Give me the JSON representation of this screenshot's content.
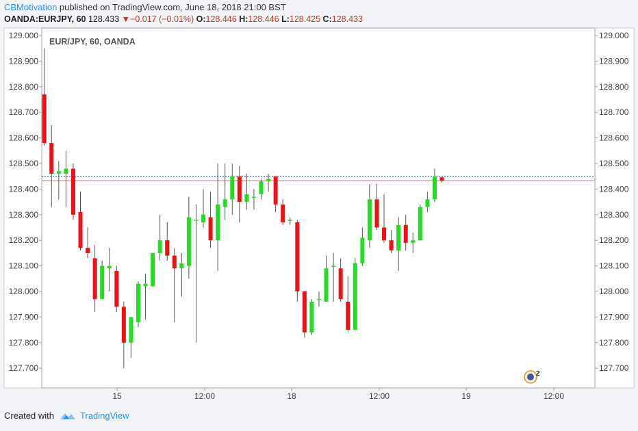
{
  "header": {
    "author": "CBMotivation",
    "published": " published on TradingView.com, June 18, 2018 21:00 BST"
  },
  "quote": {
    "symbol": "OANDA:EURJPY, 60",
    "last": "128.433",
    "change": "−0.017 (−0.01%)",
    "o_label": "O:",
    "o": "128.446",
    "h_label": "H:",
    "h": "128.446",
    "l_label": "L:",
    "l": "128.425",
    "c_label": "C:",
    "c": "128.433"
  },
  "footer": {
    "created_with": "Created with",
    "brand": "TradingView"
  },
  "colors": {
    "up": "#22dd22",
    "down": "#ee1111",
    "wick": "#555555",
    "hline_blue": "#1f3cc7",
    "hline_red": "#e57373"
  },
  "chart_data": {
    "type": "candlestick",
    "title": "EUR/JPY, 60, OANDA",
    "ylim": [
      127.62,
      129.02
    ],
    "y_ticks": [
      "129.000",
      "128.900",
      "128.800",
      "128.700",
      "128.600",
      "128.500",
      "128.400",
      "128.300",
      "128.200",
      "128.100",
      "128.000",
      "127.900",
      "127.800",
      "127.700"
    ],
    "x_ticks": [
      "15",
      "12:00",
      "18",
      "12:00",
      "19",
      "12:00"
    ],
    "hlines": [
      128.448,
      128.433
    ],
    "badge": "2",
    "candles": [
      {
        "o": 128.77,
        "h": 128.95,
        "l": 128.57,
        "c": 128.58
      },
      {
        "o": 128.58,
        "h": 128.65,
        "l": 128.33,
        "c": 128.46
      },
      {
        "o": 128.46,
        "h": 128.51,
        "l": 128.36,
        "c": 128.47
      },
      {
        "o": 128.46,
        "h": 128.55,
        "l": 128.33,
        "c": 128.48
      },
      {
        "o": 128.48,
        "h": 128.5,
        "l": 128.28,
        "c": 128.3
      },
      {
        "o": 128.31,
        "h": 128.39,
        "l": 128.16,
        "c": 128.17
      },
      {
        "o": 128.17,
        "h": 128.25,
        "l": 128.13,
        "c": 128.15
      },
      {
        "o": 128.13,
        "h": 128.18,
        "l": 127.92,
        "c": 127.97
      },
      {
        "o": 127.97,
        "h": 128.12,
        "l": 127.97,
        "c": 128.1
      },
      {
        "o": 128.09,
        "h": 128.17,
        "l": 128.0,
        "c": 128.1
      },
      {
        "o": 128.08,
        "h": 128.1,
        "l": 127.92,
        "c": 127.94
      },
      {
        "o": 127.94,
        "h": 127.96,
        "l": 127.7,
        "c": 127.8
      },
      {
        "o": 127.8,
        "h": 127.9,
        "l": 127.74,
        "c": 127.9
      },
      {
        "o": 127.88,
        "h": 128.04,
        "l": 127.86,
        "c": 128.03
      },
      {
        "o": 128.02,
        "h": 128.07,
        "l": 127.89,
        "c": 128.03
      },
      {
        "o": 128.02,
        "h": 128.15,
        "l": 128.02,
        "c": 128.15
      },
      {
        "o": 128.15,
        "h": 128.3,
        "l": 128.12,
        "c": 128.2
      },
      {
        "o": 128.2,
        "h": 128.27,
        "l": 128.12,
        "c": 128.14
      },
      {
        "o": 128.14,
        "h": 128.17,
        "l": 127.88,
        "c": 128.09
      },
      {
        "o": 128.09,
        "h": 128.15,
        "l": 127.98,
        "c": 128.11
      },
      {
        "o": 128.1,
        "h": 128.37,
        "l": 128.05,
        "c": 128.29
      },
      {
        "o": 128.28,
        "h": 128.34,
        "l": 127.8,
        "c": 128.28
      },
      {
        "o": 128.27,
        "h": 128.4,
        "l": 128.25,
        "c": 128.3
      },
      {
        "o": 128.29,
        "h": 128.39,
        "l": 128.17,
        "c": 128.2
      },
      {
        "o": 128.2,
        "h": 128.5,
        "l": 128.08,
        "c": 128.34
      },
      {
        "o": 128.33,
        "h": 128.5,
        "l": 128.28,
        "c": 128.36
      },
      {
        "o": 128.36,
        "h": 128.5,
        "l": 128.3,
        "c": 128.45
      },
      {
        "o": 128.45,
        "h": 128.49,
        "l": 128.27,
        "c": 128.35
      },
      {
        "o": 128.35,
        "h": 128.46,
        "l": 128.32,
        "c": 128.38
      },
      {
        "o": 128.37,
        "h": 128.4,
        "l": 128.32,
        "c": 128.37
      },
      {
        "o": 128.38,
        "h": 128.44,
        "l": 128.36,
        "c": 128.43
      },
      {
        "o": 128.43,
        "h": 128.46,
        "l": 128.39,
        "c": 128.44
      },
      {
        "o": 128.45,
        "h": 128.45,
        "l": 128.31,
        "c": 128.34
      },
      {
        "o": 128.34,
        "h": 128.36,
        "l": 128.26,
        "c": 128.27
      },
      {
        "o": 128.28,
        "h": 128.29,
        "l": 128.26,
        "c": 128.28
      },
      {
        "o": 128.27,
        "h": 128.28,
        "l": 127.96,
        "c": 128.0
      },
      {
        "o": 128.0,
        "h": 128.0,
        "l": 127.82,
        "c": 127.84
      },
      {
        "o": 127.84,
        "h": 127.97,
        "l": 127.83,
        "c": 127.96
      },
      {
        "o": 127.97,
        "h": 128.0,
        "l": 127.94,
        "c": 127.97
      },
      {
        "o": 127.96,
        "h": 128.14,
        "l": 127.96,
        "c": 128.09
      },
      {
        "o": 128.1,
        "h": 128.15,
        "l": 127.96,
        "c": 128.1
      },
      {
        "o": 128.09,
        "h": 128.13,
        "l": 127.96,
        "c": 127.97
      },
      {
        "o": 127.96,
        "h": 128.06,
        "l": 127.84,
        "c": 127.85
      },
      {
        "o": 127.85,
        "h": 128.13,
        "l": 127.85,
        "c": 128.11
      },
      {
        "o": 128.11,
        "h": 128.25,
        "l": 128.1,
        "c": 128.21
      },
      {
        "o": 128.2,
        "h": 128.42,
        "l": 128.17,
        "c": 128.36
      },
      {
        "o": 128.36,
        "h": 128.42,
        "l": 128.24,
        "c": 128.25
      },
      {
        "o": 128.25,
        "h": 128.38,
        "l": 128.19,
        "c": 128.2
      },
      {
        "o": 128.2,
        "h": 128.24,
        "l": 128.15,
        "c": 128.16
      },
      {
        "o": 128.16,
        "h": 128.29,
        "l": 128.08,
        "c": 128.26
      },
      {
        "o": 128.26,
        "h": 128.3,
        "l": 128.16,
        "c": 128.19
      },
      {
        "o": 128.19,
        "h": 128.23,
        "l": 128.15,
        "c": 128.2
      },
      {
        "o": 128.2,
        "h": 128.34,
        "l": 128.2,
        "c": 128.33
      },
      {
        "o": 128.33,
        "h": 128.39,
        "l": 128.31,
        "c": 128.36
      },
      {
        "o": 128.36,
        "h": 128.48,
        "l": 128.35,
        "c": 128.45
      },
      {
        "o": 128.446,
        "h": 128.446,
        "l": 128.425,
        "c": 128.433
      }
    ]
  }
}
